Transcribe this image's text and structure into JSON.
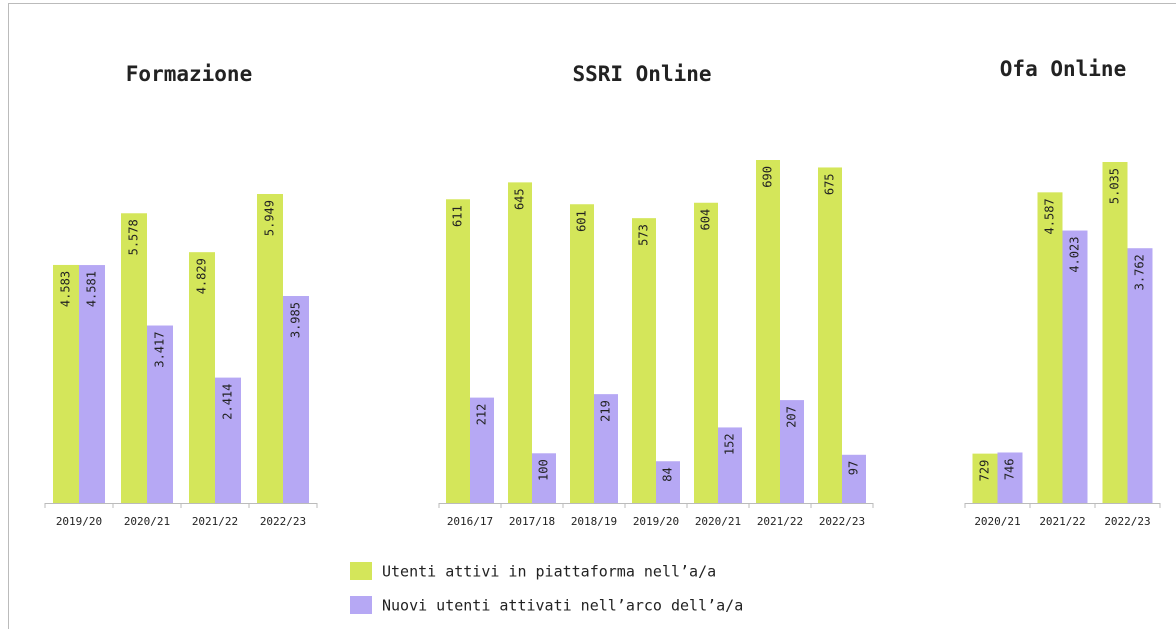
{
  "chart_data": [
    {
      "type": "bar",
      "title": "Formazione",
      "categories": [
        "2019/20",
        "2020/21",
        "2021/22",
        "2022/23"
      ],
      "series": [
        {
          "name": "Utenti attivi in piattaforma nell’a/a",
          "color": "#d4e65a",
          "values": [
            4583,
            5578,
            4829,
            5949
          ],
          "value_labels": [
            "4.583",
            "5.578",
            "4.829",
            "5.949"
          ]
        },
        {
          "name": "Nuovi utenti attivati nell’arco dell’a/a",
          "color": "#b6a8f4",
          "values": [
            4581,
            3417,
            2414,
            3985
          ],
          "value_labels": [
            "4.581",
            "3.417",
            "2.414",
            "3.985"
          ]
        }
      ]
    },
    {
      "type": "bar",
      "title": "SSRI Online",
      "categories": [
        "2016/17",
        "2017/18",
        "2018/19",
        "2019/20",
        "2020/21",
        "2021/22",
        "2022/23"
      ],
      "series": [
        {
          "color": "#d4e65a",
          "values": [
            611,
            645,
            601,
            573,
            604,
            690,
            675
          ]
        },
        {
          "color": "#b6a8f4",
          "values": [
            212,
            100,
            219,
            84,
            152,
            207,
            97
          ]
        }
      ]
    },
    {
      "type": "bar",
      "title": "Ofa Online",
      "categories": [
        "2020/21",
        "2021/22",
        "2022/23"
      ],
      "series": [
        {
          "color": "#d4e65a",
          "values": [
            729,
            4587,
            5035
          ],
          "value_labels": [
            "729",
            "4.587",
            "5.035"
          ]
        },
        {
          "color": "#b6a8f4",
          "values": [
            746,
            4023,
            3762
          ],
          "value_labels": [
            "746",
            "4.023",
            "3.762"
          ]
        }
      ]
    }
  ]
}
